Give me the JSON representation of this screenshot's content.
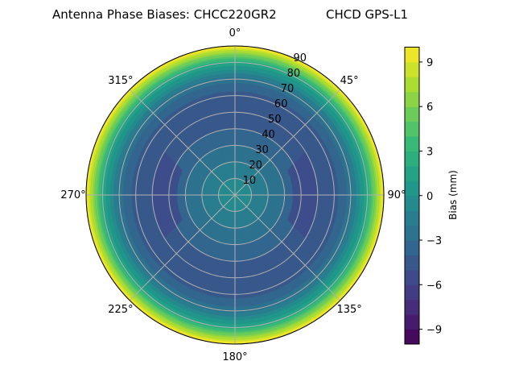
{
  "chart_data": {
    "type": "polar-contour",
    "title": "Antenna Phase Biases: CHCC220GR2",
    "subtitle": "CHCD GPS-L1",
    "angular_ticks": [
      "0°",
      "45°",
      "90°",
      "135°",
      "180°",
      "225°",
      "270°",
      "315°"
    ],
    "radial_ticks": [
      "10",
      "20",
      "30",
      "40",
      "50",
      "60",
      "70",
      "80",
      "90"
    ],
    "radial_range": [
      0,
      90
    ],
    "grid": true,
    "colormap": "viridis",
    "colorbar": {
      "label": "Bias (mm)",
      "range": [
        -10,
        10
      ],
      "level_step": 1,
      "ticks": [
        "−9",
        "−6",
        "−3",
        "0",
        "3",
        "6",
        "9"
      ],
      "tick_values": [
        -9,
        -6,
        -3,
        0,
        3,
        6,
        9
      ]
    },
    "radial_profile": {
      "zenith_deg": [
        0,
        10,
        20,
        30,
        40,
        50,
        60,
        70,
        80,
        85,
        90
      ],
      "bias_mm": [
        -0.5,
        -1,
        -2,
        -3,
        -4,
        -5,
        -4.5,
        -2.5,
        2,
        6,
        10
      ]
    },
    "local_minima": [
      {
        "azimuth_deg": 90,
        "zenith_deg": [
          35,
          50
        ],
        "bias_mm": -6
      },
      {
        "azimuth_deg": 270,
        "zenith_deg": [
          35,
          50
        ],
        "bias_mm": -6
      }
    ]
  }
}
